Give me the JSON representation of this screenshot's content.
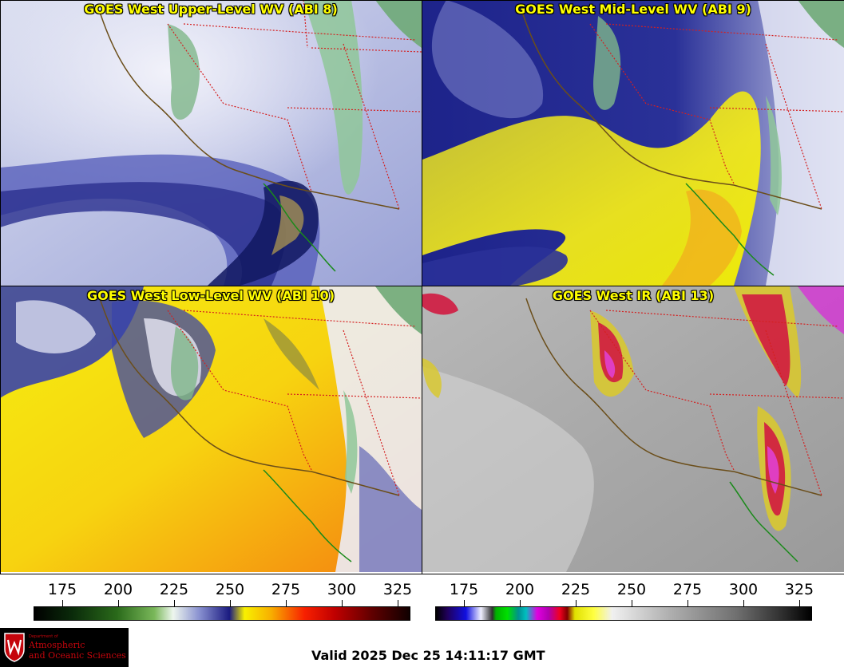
{
  "panels": [
    {
      "title": "GOES West Upper-Level WV (ABI 8)",
      "scheme": "upper"
    },
    {
      "title": "GOES West Mid-Level WV (ABI 9)",
      "scheme": "mid"
    },
    {
      "title": "GOES West Low-Level WV (ABI 10)",
      "scheme": "low"
    },
    {
      "title": "GOES West IR (ABI 13)",
      "scheme": "ir"
    }
  ],
  "colorbars": {
    "wv": {
      "ticks": [
        "175",
        "200",
        "225",
        "250",
        "275",
        "300",
        "325"
      ]
    },
    "ir": {
      "ticks": [
        "175",
        "200",
        "225",
        "250",
        "275",
        "300",
        "325"
      ]
    }
  },
  "colors": {
    "state_border": "#d42020",
    "coast": "#6b4e1a",
    "mexico_coast": "#1a8a1a",
    "title_text": "#ffff00"
  },
  "logo": {
    "dept": "Department of",
    "line1": "Atmospheric",
    "line2": "and Oceanic Sciences"
  },
  "valid_time": "Valid 2025 Dec 25 14:11:17 GMT"
}
